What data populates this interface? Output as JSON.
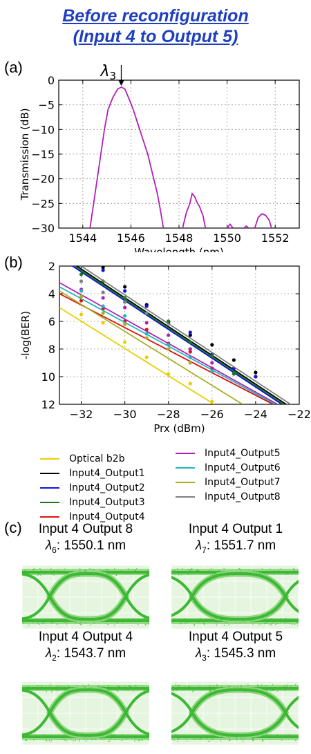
{
  "header": {
    "title_line1": "Before reconfiguration",
    "title_line2": "(Input 4 to Output 5)"
  },
  "panel_labels": {
    "a": "(a)",
    "b": "(b)",
    "c": "(c)"
  },
  "chart_data": [
    {
      "type": "line",
      "panel": "(a)",
      "xlabel": "Wavelength (nm)",
      "ylabel": "Transmission (dB)",
      "xlim": [
        1543.0,
        1553.0
      ],
      "ylim": [
        -30,
        0
      ],
      "xticks": [
        1544,
        1546,
        1548,
        1550,
        1552
      ],
      "yticks": [
        0,
        -5,
        -10,
        -15,
        -20,
        -25,
        -30
      ],
      "grid": true,
      "color": "#b020b8",
      "annotation": {
        "label": "λ3",
        "x": 1545.6,
        "y": -1.3
      },
      "segments": [
        [
          [
            1544.3,
            -30
          ],
          [
            1544.45,
            -25
          ],
          [
            1544.6,
            -20
          ],
          [
            1544.75,
            -15
          ],
          [
            1544.9,
            -10
          ],
          [
            1545.05,
            -6
          ],
          [
            1545.25,
            -3.5
          ],
          [
            1545.45,
            -1.8
          ],
          [
            1545.6,
            -1.4
          ],
          [
            1545.75,
            -1.8
          ],
          [
            1545.9,
            -3.5
          ],
          [
            1546.1,
            -6
          ],
          [
            1546.3,
            -9
          ],
          [
            1546.5,
            -12
          ],
          [
            1546.7,
            -15
          ],
          [
            1546.9,
            -19
          ],
          [
            1547.1,
            -23
          ],
          [
            1547.25,
            -27
          ],
          [
            1547.35,
            -30
          ]
        ],
        [
          [
            1548.15,
            -30
          ],
          [
            1548.3,
            -27
          ],
          [
            1548.45,
            -25
          ],
          [
            1548.55,
            -23
          ],
          [
            1548.65,
            -23.6
          ],
          [
            1548.75,
            -24.8
          ],
          [
            1548.85,
            -25.6
          ],
          [
            1549.0,
            -27.5
          ],
          [
            1549.1,
            -30
          ]
        ],
        [
          [
            1550.0,
            -30
          ],
          [
            1550.12,
            -29.2
          ],
          [
            1550.25,
            -30
          ]
        ],
        [
          [
            1550.7,
            -30
          ],
          [
            1550.8,
            -29.6
          ],
          [
            1550.9,
            -30
          ]
        ],
        [
          [
            1551.15,
            -30
          ],
          [
            1551.3,
            -27.8
          ],
          [
            1551.45,
            -27.1
          ],
          [
            1551.6,
            -27.4
          ],
          [
            1551.75,
            -28.4
          ],
          [
            1551.85,
            -30
          ]
        ]
      ]
    },
    {
      "type": "scatter",
      "panel": "(b)",
      "xlabel": "Prx (dBm)",
      "ylabel": "-log(BER)",
      "xlim": [
        -33,
        -22
      ],
      "ylim": [
        12,
        2
      ],
      "xticks": [
        -32,
        -30,
        -28,
        -26,
        -24,
        -22
      ],
      "yticks": [
        2,
        4,
        6,
        8,
        10,
        12
      ],
      "grid": true,
      "series": [
        {
          "name": "Optical b2b",
          "color": "#e8d000",
          "fit": [
            [
              -33,
              5.0
            ],
            [
              -25.9,
              12
            ]
          ],
          "points": [
            [
              -32,
              5.5
            ],
            [
              -31,
              6.1
            ],
            [
              -30,
              7.5
            ],
            [
              -29,
              8.6
            ],
            [
              -28,
              9.8
            ],
            [
              -27,
              10.5
            ],
            [
              -26,
              11.8
            ]
          ]
        },
        {
          "name": "Input4_Output1",
          "color": "#000000",
          "fit": [
            [
              -32.2,
              2
            ],
            [
              -22.6,
              12
            ]
          ],
          "points": [
            [
              -31,
              2.1
            ],
            [
              -30,
              3.5
            ],
            [
              -29,
              4.8
            ],
            [
              -28,
              6.0
            ],
            [
              -27,
              7.0
            ],
            [
              -26,
              7.7
            ],
            [
              -25,
              8.8
            ],
            [
              -24,
              9.7
            ]
          ]
        },
        {
          "name": "Input4_Output2",
          "color": "#1010e0",
          "fit": [
            [
              -32.4,
              2
            ],
            [
              -22.8,
              12
            ]
          ],
          "points": [
            [
              -31,
              2.3
            ],
            [
              -30,
              3.8
            ],
            [
              -29,
              4.9
            ],
            [
              -28,
              6.1
            ],
            [
              -27,
              6.8
            ],
            [
              -26,
              8.4
            ],
            [
              -25,
              9.4
            ],
            [
              -24,
              10.0
            ]
          ]
        },
        {
          "name": "Input4_Output3",
          "color": "#1a7a1a",
          "fit": [
            [
              -32.3,
              2
            ],
            [
              -22.7,
              12
            ]
          ],
          "points": [
            [
              -32,
              2.6
            ],
            [
              -31,
              3.1
            ],
            [
              -30,
              4.3
            ],
            [
              -29,
              5.4
            ],
            [
              -28,
              6.0
            ],
            [
              -27,
              7.5
            ],
            [
              -26,
              8.5
            ],
            [
              -25,
              9.8
            ]
          ]
        },
        {
          "name": "Input4_Output4",
          "color": "#e01010",
          "fit": [
            [
              -33,
              4.0
            ],
            [
              -23.2,
              12
            ]
          ],
          "points": [
            [
              -32,
              4.5
            ],
            [
              -31,
              5.1
            ],
            [
              -30,
              6.0
            ],
            [
              -29,
              6.6
            ],
            [
              -28,
              7.6
            ],
            [
              -27,
              8.2
            ],
            [
              -26,
              9.4
            ]
          ]
        },
        {
          "name": "Input4_Output5",
          "color": "#b020b8",
          "fit": [
            [
              -33,
              3.2
            ],
            [
              -23.0,
              12
            ]
          ],
          "points": [
            [
              -32,
              3.7
            ],
            [
              -31,
              4.3
            ],
            [
              -30,
              5.0
            ],
            [
              -29,
              6.1
            ],
            [
              -28,
              7.0
            ],
            [
              -27,
              8.0
            ],
            [
              -26,
              9.0
            ]
          ]
        },
        {
          "name": "Input4_Output6",
          "color": "#20b8b8",
          "fit": [
            [
              -33,
              3.5
            ],
            [
              -23.1,
              12
            ]
          ],
          "points": [
            [
              -32,
              3.8
            ],
            [
              -31,
              4.9
            ],
            [
              -30,
              5.6
            ],
            [
              -29,
              6.9
            ],
            [
              -28,
              7.7
            ],
            [
              -27,
              8.6
            ],
            [
              -26,
              9.6
            ]
          ]
        },
        {
          "name": "Input4_Output7",
          "color": "#a8b020",
          "fit": [
            [
              -33,
              3.8
            ],
            [
              -24.6,
              12
            ]
          ],
          "points": [
            [
              -32,
              4.2
            ],
            [
              -31,
              5.4
            ],
            [
              -30,
              6.2
            ],
            [
              -29,
              7.2
            ],
            [
              -28,
              8.0
            ],
            [
              -27,
              9.0
            ]
          ]
        },
        {
          "name": "Input4_Output8",
          "color": "#808080",
          "fit": [
            [
              -32.0,
              2
            ],
            [
              -22.4,
              12
            ]
          ],
          "points": [
            [
              -32,
              3.1
            ],
            [
              -31,
              3.9
            ],
            [
              -30,
              4.6
            ],
            [
              -29,
              5.4
            ]
          ]
        }
      ]
    }
  ],
  "legend": {
    "items": [
      {
        "label": "Optical b2b",
        "color": "#e8d000"
      },
      {
        "label": "Input4_Output1",
        "color": "#000000"
      },
      {
        "label": "Input4_Output2",
        "color": "#1010e0"
      },
      {
        "label": "Input4_Output3",
        "color": "#1a7a1a"
      },
      {
        "label": "Input4_Output4",
        "color": "#e01010"
      },
      {
        "label": "Input4_Output5",
        "color": "#b020b8"
      },
      {
        "label": "Input4_Output6",
        "color": "#20b8b8"
      },
      {
        "label": "Input4_Output7",
        "color": "#a8b020"
      },
      {
        "label": "Input4_Output8",
        "color": "#808080"
      }
    ]
  },
  "eye_diagrams": [
    {
      "title": "Input 4 Output 8",
      "lambda_sym": "λ",
      "lambda_sub": "6",
      "lambda_value": ": 1550.1 nm"
    },
    {
      "title": "Input 4 Output 1",
      "lambda_sym": "λ",
      "lambda_sub": "7",
      "lambda_value": ": 1551.7 nm"
    },
    {
      "title": "Input 4 Output 4",
      "lambda_sym": "λ",
      "lambda_sub": "2",
      "lambda_value": ": 1543.7 nm"
    },
    {
      "title": "Input 4 Output 5",
      "lambda_sym": "λ",
      "lambda_sub": "3",
      "lambda_value": ": 1545.3 nm"
    }
  ],
  "eye_colors": {
    "trace": "#3cb834",
    "trace_light": "#8ed67e",
    "background": "#e6f5e0"
  }
}
